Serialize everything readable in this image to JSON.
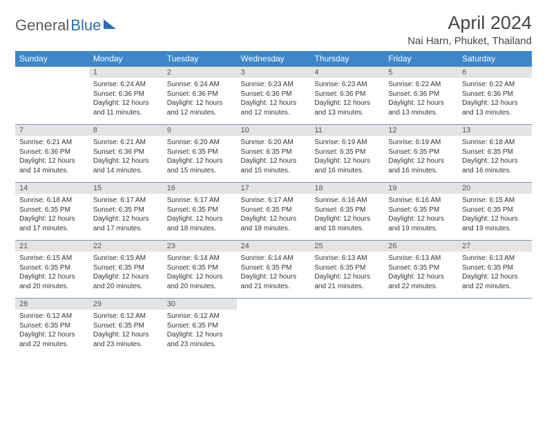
{
  "logo": {
    "part1": "General",
    "part2": "Blue"
  },
  "title": "April 2024",
  "location": "Nai Harn, Phuket, Thailand",
  "weekdays": [
    "Sunday",
    "Monday",
    "Tuesday",
    "Wednesday",
    "Thursday",
    "Friday",
    "Saturday"
  ],
  "colors": {
    "header_bg": "#3d87c9",
    "daynum_bg": "#e4e4e4",
    "rule": "#7a94ad",
    "text": "#333333",
    "logo_gray": "#5a5a5a",
    "logo_blue": "#2a6fb5"
  },
  "fonts": {
    "title_size_pt": 20,
    "location_size_pt": 11,
    "weekday_size_pt": 9,
    "daynum_size_pt": 8.5,
    "body_size_pt": 7.5
  },
  "weeks": [
    [
      null,
      {
        "n": "1",
        "sr": "6:24 AM",
        "ss": "6:36 PM",
        "dl": "12 hours and 11 minutes."
      },
      {
        "n": "2",
        "sr": "6:24 AM",
        "ss": "6:36 PM",
        "dl": "12 hours and 12 minutes."
      },
      {
        "n": "3",
        "sr": "6:23 AM",
        "ss": "6:36 PM",
        "dl": "12 hours and 12 minutes."
      },
      {
        "n": "4",
        "sr": "6:23 AM",
        "ss": "6:36 PM",
        "dl": "12 hours and 13 minutes."
      },
      {
        "n": "5",
        "sr": "6:22 AM",
        "ss": "6:36 PM",
        "dl": "12 hours and 13 minutes."
      },
      {
        "n": "6",
        "sr": "6:22 AM",
        "ss": "6:36 PM",
        "dl": "12 hours and 13 minutes."
      }
    ],
    [
      {
        "n": "7",
        "sr": "6:21 AM",
        "ss": "6:36 PM",
        "dl": "12 hours and 14 minutes."
      },
      {
        "n": "8",
        "sr": "6:21 AM",
        "ss": "6:36 PM",
        "dl": "12 hours and 14 minutes."
      },
      {
        "n": "9",
        "sr": "6:20 AM",
        "ss": "6:35 PM",
        "dl": "12 hours and 15 minutes."
      },
      {
        "n": "10",
        "sr": "6:20 AM",
        "ss": "6:35 PM",
        "dl": "12 hours and 15 minutes."
      },
      {
        "n": "11",
        "sr": "6:19 AM",
        "ss": "6:35 PM",
        "dl": "12 hours and 16 minutes."
      },
      {
        "n": "12",
        "sr": "6:19 AM",
        "ss": "6:35 PM",
        "dl": "12 hours and 16 minutes."
      },
      {
        "n": "13",
        "sr": "6:18 AM",
        "ss": "6:35 PM",
        "dl": "12 hours and 16 minutes."
      }
    ],
    [
      {
        "n": "14",
        "sr": "6:18 AM",
        "ss": "6:35 PM",
        "dl": "12 hours and 17 minutes."
      },
      {
        "n": "15",
        "sr": "6:17 AM",
        "ss": "6:35 PM",
        "dl": "12 hours and 17 minutes."
      },
      {
        "n": "16",
        "sr": "6:17 AM",
        "ss": "6:35 PM",
        "dl": "12 hours and 18 minutes."
      },
      {
        "n": "17",
        "sr": "6:17 AM",
        "ss": "6:35 PM",
        "dl": "12 hours and 18 minutes."
      },
      {
        "n": "18",
        "sr": "6:16 AM",
        "ss": "6:35 PM",
        "dl": "12 hours and 18 minutes."
      },
      {
        "n": "19",
        "sr": "6:16 AM",
        "ss": "6:35 PM",
        "dl": "12 hours and 19 minutes."
      },
      {
        "n": "20",
        "sr": "6:15 AM",
        "ss": "6:35 PM",
        "dl": "12 hours and 19 minutes."
      }
    ],
    [
      {
        "n": "21",
        "sr": "6:15 AM",
        "ss": "6:35 PM",
        "dl": "12 hours and 20 minutes."
      },
      {
        "n": "22",
        "sr": "6:15 AM",
        "ss": "6:35 PM",
        "dl": "12 hours and 20 minutes."
      },
      {
        "n": "23",
        "sr": "6:14 AM",
        "ss": "6:35 PM",
        "dl": "12 hours and 20 minutes."
      },
      {
        "n": "24",
        "sr": "6:14 AM",
        "ss": "6:35 PM",
        "dl": "12 hours and 21 minutes."
      },
      {
        "n": "25",
        "sr": "6:13 AM",
        "ss": "6:35 PM",
        "dl": "12 hours and 21 minutes."
      },
      {
        "n": "26",
        "sr": "6:13 AM",
        "ss": "6:35 PM",
        "dl": "12 hours and 22 minutes."
      },
      {
        "n": "27",
        "sr": "6:13 AM",
        "ss": "6:35 PM",
        "dl": "12 hours and 22 minutes."
      }
    ],
    [
      {
        "n": "28",
        "sr": "6:12 AM",
        "ss": "6:35 PM",
        "dl": "12 hours and 22 minutes."
      },
      {
        "n": "29",
        "sr": "6:12 AM",
        "ss": "6:35 PM",
        "dl": "12 hours and 23 minutes."
      },
      {
        "n": "30",
        "sr": "6:12 AM",
        "ss": "6:35 PM",
        "dl": "12 hours and 23 minutes."
      },
      null,
      null,
      null,
      null
    ]
  ],
  "labels": {
    "sunrise": "Sunrise:",
    "sunset": "Sunset:",
    "daylight": "Daylight:"
  }
}
